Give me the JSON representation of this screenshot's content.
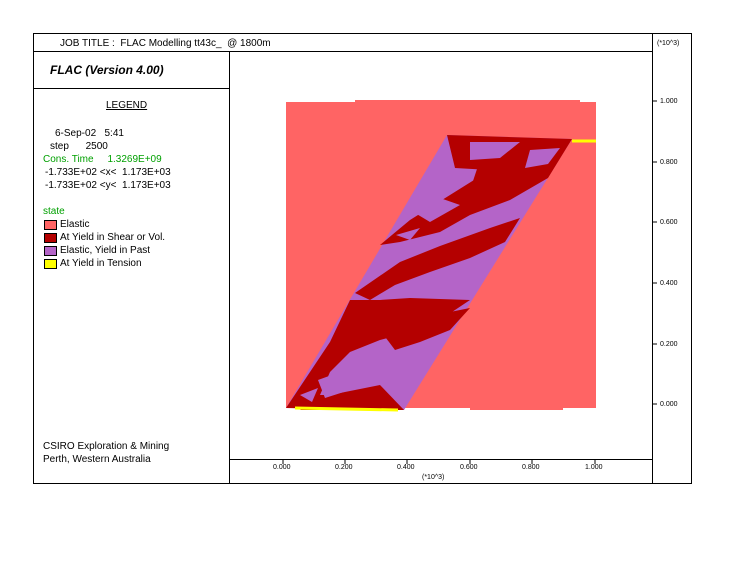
{
  "header": {
    "job_title": "JOB TITLE :  FLAC Modelling tt43c_  @ 1800m",
    "version": "FLAC (Version 4.00)",
    "axis_multiplier_top": "(*10^3)"
  },
  "legend": {
    "title": "LEGEND",
    "date_time": "6-Sep-02   5:41",
    "step": "step      2500",
    "cons_time": "Cons. Time     1.3269E+09",
    "x_range": "-1.733E+02 <x<  1.173E+03",
    "y_range": "-1.733E+02 <y<  1.173E+03",
    "state_label": "state",
    "items": [
      {
        "label": "Elastic",
        "color": "#ff6464"
      },
      {
        "label": "At Yield in Shear or Vol.",
        "color": "#b40000"
      },
      {
        "label": "Elastic, Yield in Past",
        "color": "#b464c8"
      },
      {
        "label": "At Yield in Tension",
        "color": "#ffff00"
      }
    ]
  },
  "footer": {
    "line1": "CSIRO Exploration & Mining",
    "line2": "Perth, Western Australia"
  },
  "axes": {
    "x_ticks": [
      "0.000",
      "0.200",
      "0.400",
      "0.600",
      "0.800",
      "1.000"
    ],
    "y_ticks": [
      "1.000",
      "0.800",
      "0.600",
      "0.400",
      "0.200",
      "0.000"
    ],
    "x_multiplier": "(*10^3)"
  },
  "colors": {
    "elastic": "#ff6464",
    "shear": "#b40000",
    "past": "#b464c8",
    "tension": "#ffff00"
  }
}
